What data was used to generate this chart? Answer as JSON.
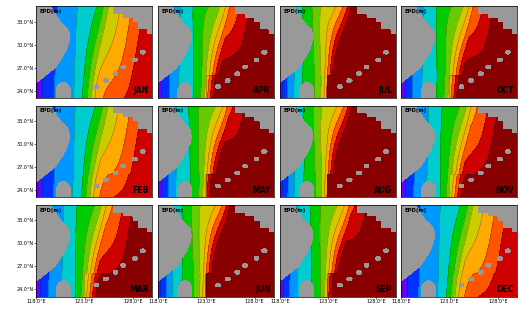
{
  "month_grid": [
    [
      "JAN",
      "APR",
      "JUL",
      "OCT"
    ],
    [
      "FEB",
      "MAY",
      "AUG",
      "NOV"
    ],
    [
      "MAR",
      "JUN",
      "SEP",
      "DEC"
    ]
  ],
  "month_to_idx": {
    "JAN": 0,
    "FEB": 1,
    "MAR": 2,
    "APR": 3,
    "MAY": 4,
    "JUN": 5,
    "JUL": 6,
    "AUG": 7,
    "SEP": 8,
    "OCT": 9,
    "NOV": 10,
    "DEC": 11
  },
  "lon_range": [
    118.0,
    130.0
  ],
  "lat_range": [
    23.0,
    35.0
  ],
  "lon_ticks": [
    118.0,
    123.0,
    128.0
  ],
  "lat_ticks": [
    24.0,
    27.0,
    30.0,
    33.0
  ],
  "lon_tick_labels": [
    "118.0°E",
    "123.0°E",
    "128.0°E"
  ],
  "lat_tick_labels": [
    "24.0°N",
    "27.0°N",
    "30.0°N",
    "33.0°N"
  ],
  "colormap_colors": [
    "#9900cc",
    "#6600ff",
    "#0033ff",
    "#0099ff",
    "#00cccc",
    "#00cc00",
    "#66cc00",
    "#cccc00",
    "#ffaa00",
    "#ff5500",
    "#cc0000",
    "#880000"
  ],
  "levels": [
    0,
    5,
    10,
    20,
    30,
    40,
    50,
    60,
    70,
    80,
    90,
    100,
    120
  ],
  "label": "EPD(m)",
  "land_color": "#999999",
  "ocean_bg": "#cccccc",
  "figsize": [
    5.2,
    3.19
  ],
  "dpi": 100
}
